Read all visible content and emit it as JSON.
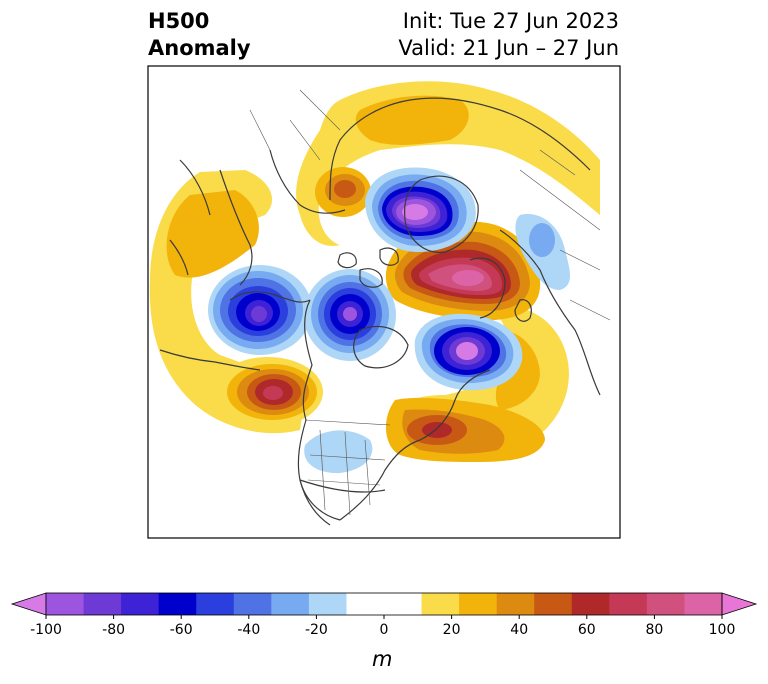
{
  "header": {
    "left_title_line1": "H500",
    "left_title_line2": "Anomaly",
    "right_title_line1": "Init: Tue 27 Jun 2023",
    "right_title_line2": "Valid: 21 Jun – 27 Jun"
  },
  "colorbar": {
    "ticks": [
      "-100",
      "-80",
      "-60",
      "-40",
      "-20",
      "0",
      "20",
      "40",
      "60",
      "80",
      "100"
    ],
    "unit": "m",
    "colors": [
      "#d67ae6",
      "#9d55e0",
      "#6e3ad6",
      "#3d22d6",
      "#0000cc",
      "#2a3fdd",
      "#4f73e4",
      "#77aaf0",
      "#aed6f6",
      "#ffffff",
      "#ffffff",
      "#fadc4a",
      "#f2b40b",
      "#dd8a10",
      "#c75914",
      "#b0292a",
      "#c43a56",
      "#d0507e",
      "#dc64a6",
      "#e776d6"
    ]
  },
  "map_colors": {
    "neg_light": "#aed6f6",
    "neg_mid": "#77aaf0",
    "neg_blue": "#4f73e4",
    "neg_deep": "#0000cc",
    "neg_purple": "#6e3ad6",
    "neg_core": "#d67ae6",
    "pos_yellow": "#fadc4a",
    "pos_gold": "#f2b40b",
    "pos_orange": "#dd8a10",
    "pos_rust": "#c75914",
    "pos_red": "#b0292a",
    "pos_pink": "#d0507e",
    "coast": "#3a3a3a"
  }
}
